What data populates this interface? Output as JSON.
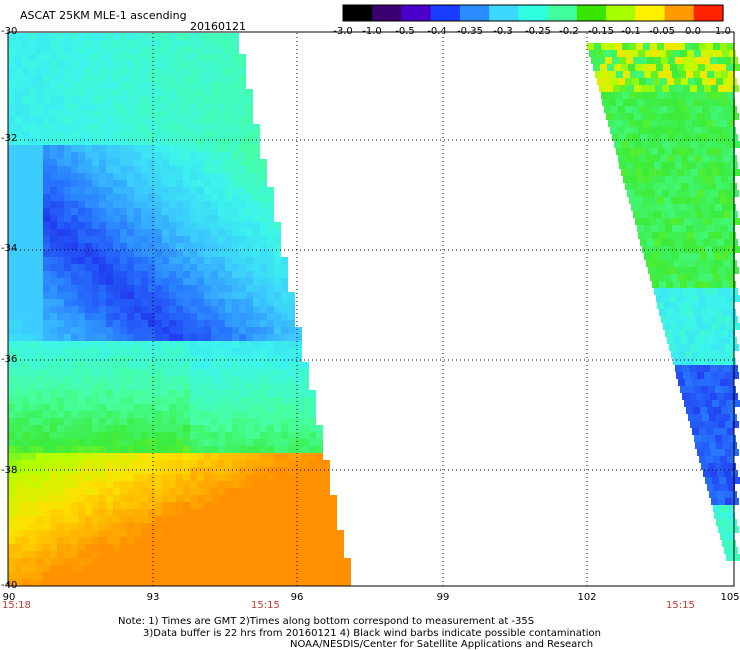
{
  "header": {
    "title": "ASCAT 25KM MLE-1 ascending",
    "date": "20160121"
  },
  "colorbar": {
    "labels": [
      "-3.0",
      "-1.0",
      "-0.5",
      "-0.4",
      "-0.35",
      "-0.3",
      "-0.25",
      "-0.2",
      "-0.15",
      "-0.1",
      "-0.05",
      "0.0",
      "1.0"
    ],
    "colors": [
      "#000000",
      "#3a0070",
      "#4a00c8",
      "#1a3cff",
      "#2b8cff",
      "#3cd8ff",
      "#2effe0",
      "#40ff9c",
      "#39e400",
      "#a8ff00",
      "#fff000",
      "#ff9a00",
      "#ff2200"
    ]
  },
  "axes": {
    "y_ticks": [
      "-30",
      "-32",
      "-34",
      "-36",
      "-38",
      "-40"
    ],
    "x_ticks": [
      "90",
      "93",
      "96",
      "99",
      "102",
      "105"
    ],
    "lon_range": [
      90,
      105
    ],
    "lat_range": [
      -40,
      -30
    ]
  },
  "times": [
    "15:18",
    "15:15",
    "15:15"
  ],
  "notes": [
    "Note: 1) Times are GMT 2)Times along bottom correspond to measurement at -35S",
    "3)Data buffer is 22 hrs from 20160121 4) Black wind barbs indicate possible contamination",
    "NOAA/NESDIS/Center for Satellite Applications and Research"
  ]
}
